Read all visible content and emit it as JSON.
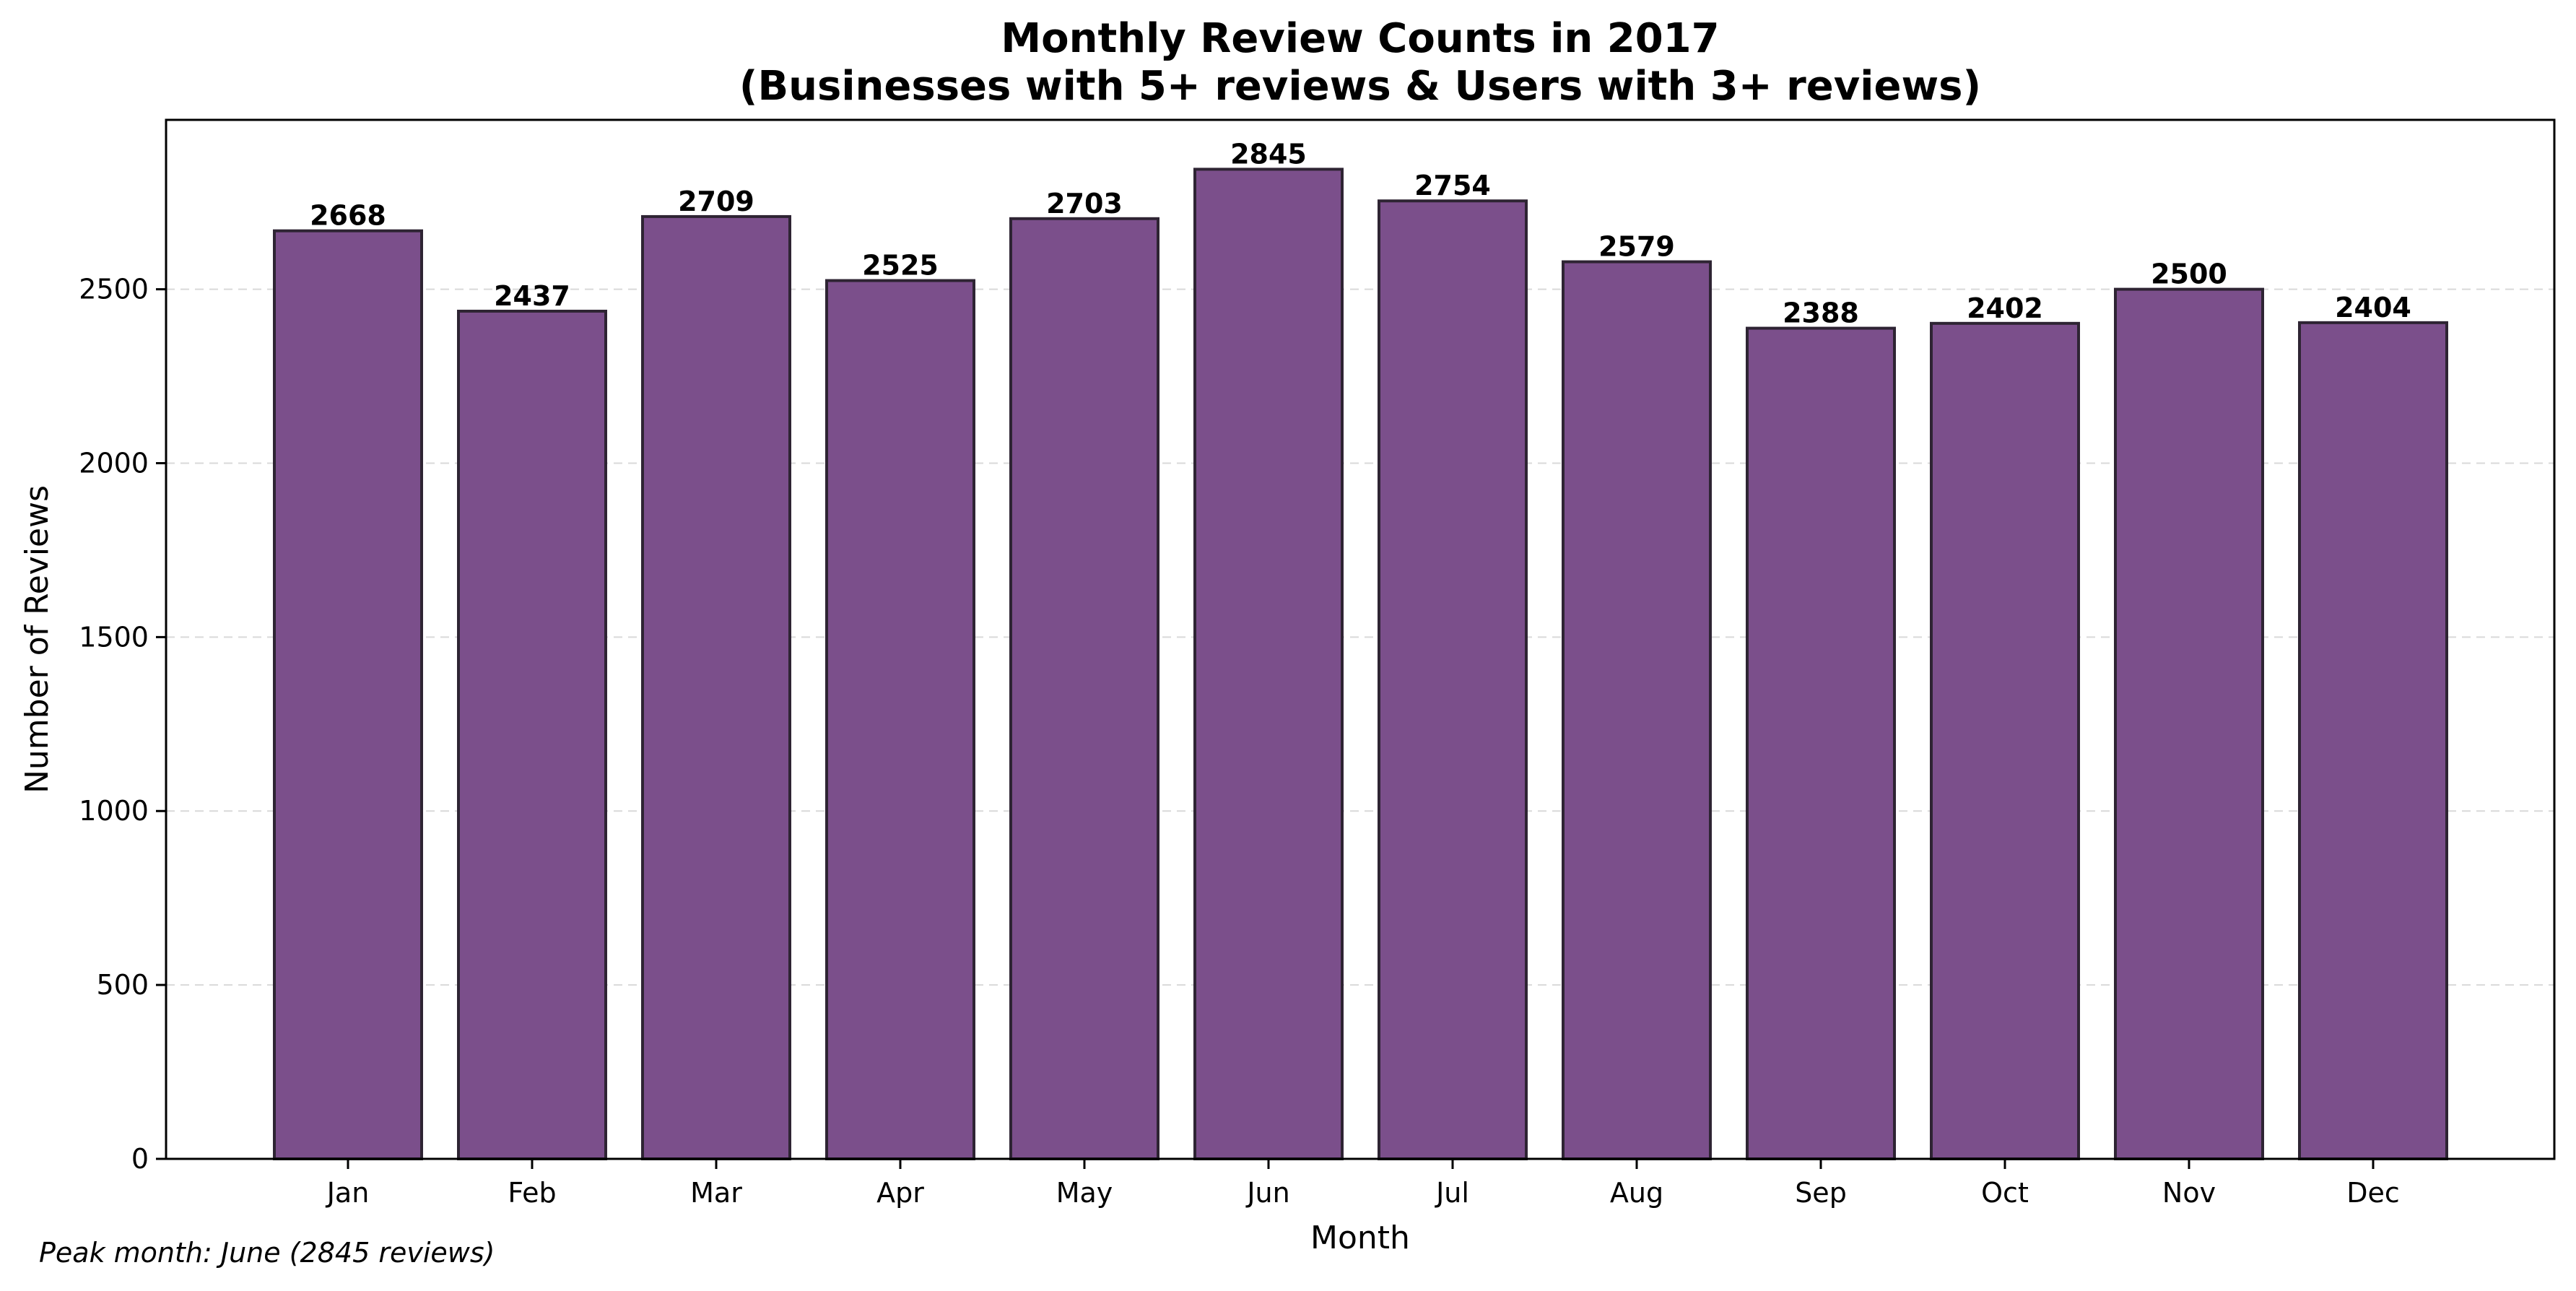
{
  "chart_data": {
    "type": "bar",
    "title_lines": [
      "Monthly Review Counts in 2017",
      "(Businesses with 5+ reviews & Users with 3+ reviews)"
    ],
    "xlabel": "Month",
    "ylabel": "Number of Reviews",
    "categories": [
      "Jan",
      "Feb",
      "Mar",
      "Apr",
      "May",
      "Jun",
      "Jul",
      "Aug",
      "Sep",
      "Oct",
      "Nov",
      "Dec"
    ],
    "values": [
      2668,
      2437,
      2709,
      2525,
      2703,
      2845,
      2754,
      2579,
      2388,
      2402,
      2500,
      2404
    ],
    "value_labels": [
      "2668",
      "2437",
      "2709",
      "2525",
      "2703",
      "2845",
      "2754",
      "2579",
      "2388",
      "2402",
      "2500",
      "2404"
    ],
    "y_ticks": [
      0,
      500,
      1000,
      1500,
      2000,
      2500
    ],
    "y_tick_labels": [
      "0",
      "500",
      "1000",
      "1500",
      "2000",
      "2500"
    ],
    "ylim": [
      0,
      2987
    ],
    "grid": "y-dashed",
    "legend": "none",
    "bar_color": "#7b4f8b",
    "bar_edge_color": "#2e2433",
    "annotation": "Peak month: June (2845 reviews)"
  }
}
